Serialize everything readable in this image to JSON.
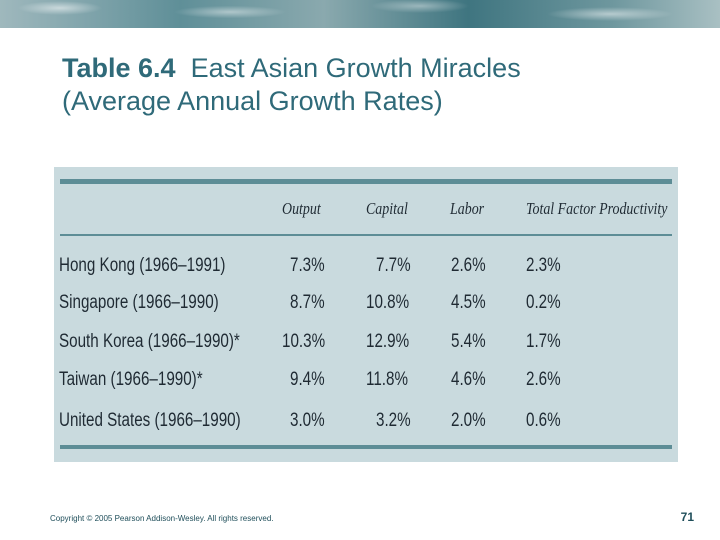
{
  "title": {
    "table_number": "Table 6.4",
    "line1_rest": "East Asian Growth Miracles",
    "line2": "(Average Annual Growth Rates)"
  },
  "table": {
    "headers": [
      "Output",
      "Capital",
      "Labor",
      "Total Factor Productivity"
    ],
    "rows": [
      {
        "country": "Hong Kong (1966–1991)",
        "output": "7.3%",
        "capital": "7.7%",
        "labor": "2.6%",
        "tfp": "2.3%"
      },
      {
        "country": "Singapore (1966–1990)",
        "output": "8.7%",
        "capital": "10.8%",
        "labor": "4.5%",
        "tfp": "0.2%"
      },
      {
        "country": "South Korea (1966–1990)*",
        "output": "10.3%",
        "capital": "12.9%",
        "labor": "5.4%",
        "tfp": "1.7%"
      },
      {
        "country": "Taiwan (1966–1990)*",
        "output": "9.4%",
        "capital": "11.8%",
        "labor": "4.6%",
        "tfp": "2.6%"
      },
      {
        "country": "United States (1966–1990)",
        "output": "3.0%",
        "capital": "3.2%",
        "labor": "2.0%",
        "tfp": "0.6%"
      }
    ]
  },
  "footer": {
    "copyright": "Copyright © 2005 Pearson Addison-Wesley. All rights reserved.",
    "page_number": "71"
  }
}
